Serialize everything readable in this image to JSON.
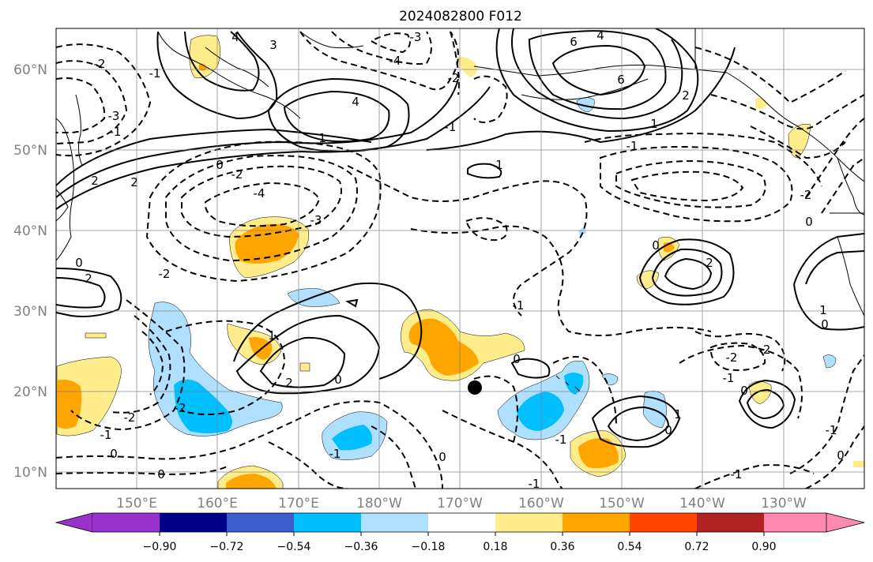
{
  "title": "2024082800 F012",
  "map": {
    "lat_labels": [
      "60°N",
      "50°N",
      "40°N",
      "30°N",
      "20°N",
      "10°N"
    ],
    "lon_labels": [
      "150°E",
      "160°E",
      "170°E",
      "180°W",
      "170°W",
      "160°W",
      "150°W",
      "140°W",
      "130°W"
    ],
    "marker": "typhoon-position-dot",
    "contour_labels": {
      "solid": [
        "4",
        "3",
        "4",
        "6",
        "2",
        "1",
        "0",
        "1",
        "2",
        "2",
        "1",
        "2",
        "0",
        "1",
        "0",
        "0",
        "2",
        "1",
        "1",
        "0"
      ],
      "dashed": [
        "-4",
        "-3",
        "-2",
        "-1",
        "-3",
        "-2",
        "-1",
        "-2",
        "-1",
        "-3",
        "-4",
        "-1",
        "-2",
        "-2",
        "-1",
        "-2",
        "-1",
        "-1"
      ]
    }
  },
  "colorbar": {
    "colors": [
      "#9932cc",
      "#00008b",
      "#3a5fcd",
      "#00bfff",
      "#b0e0ff",
      "#ffffff",
      "#ffec8b",
      "#ffa500",
      "#ff4500",
      "#b22222",
      "#ff88b0"
    ],
    "tick_labels": [
      "−0.90",
      "−0.72",
      "−0.54",
      "−0.36",
      "−0.18",
      "0.18",
      "0.36",
      "0.54",
      "0.72",
      "0.90"
    ]
  }
}
